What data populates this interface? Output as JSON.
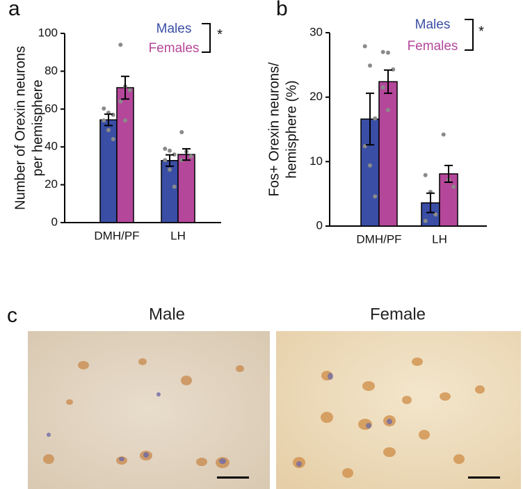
{
  "panels": {
    "a": "a",
    "b": "b",
    "c": "c"
  },
  "images": {
    "left_title": "Male",
    "right_title": "Female"
  },
  "chart_data": [
    {
      "type": "bar",
      "ylabel": [
        "Number of Orexin neurons",
        "per hemisphere"
      ],
      "categories": [
        "DMH/PF",
        "LH"
      ],
      "ylim": [
        0,
        100
      ],
      "yticks": [
        0,
        20,
        40,
        60,
        80,
        100
      ],
      "annotation": "*",
      "series": [
        {
          "name": "Males",
          "color": "#3a4ea5",
          "values": [
            54.3,
            32.8
          ],
          "errors": [
            3,
            3
          ],
          "points": [
            [
              60.3,
              58.1,
              57,
              54,
              48.9,
              44.1
            ],
            [
              39,
              38,
              36,
              33,
              28,
              19
            ]
          ]
        },
        {
          "name": "Females",
          "color": "#b5479b",
          "values": [
            71.3,
            36
          ],
          "errors": [
            6,
            3
          ],
          "points": [
            [
              94,
              72,
              70,
              64,
              54
            ],
            [
              47.8,
              37.5,
              35,
              33
            ]
          ]
        }
      ]
    },
    {
      "type": "bar",
      "ylabel": [
        "Fos+ Orexin neurons/",
        "hemisphere (%)"
      ],
      "categories": [
        "DMH/PF",
        "LH"
      ],
      "ylim": [
        0,
        30
      ],
      "yticks": [
        0,
        10,
        20,
        30
      ],
      "annotation": "*",
      "series": [
        {
          "name": "Males",
          "color": "#3a4ea5",
          "values": [
            16.6,
            3.6
          ],
          "errors": [
            4,
            1.5
          ],
          "points": [
            [
              27.9,
              24.9,
              16.7,
              12.4,
              9.4,
              4.6
            ],
            [
              7.9,
              5.3,
              1.8,
              0.8
            ]
          ]
        },
        {
          "name": "Females",
          "color": "#b5479b",
          "values": [
            22.4,
            8.1
          ],
          "errors": [
            1.8,
            1.3
          ],
          "points": [
            [
              27,
              26.9,
              24.3,
              21.5,
              18
            ],
            [
              14.2,
              7.2,
              6.1
            ]
          ]
        }
      ]
    }
  ]
}
